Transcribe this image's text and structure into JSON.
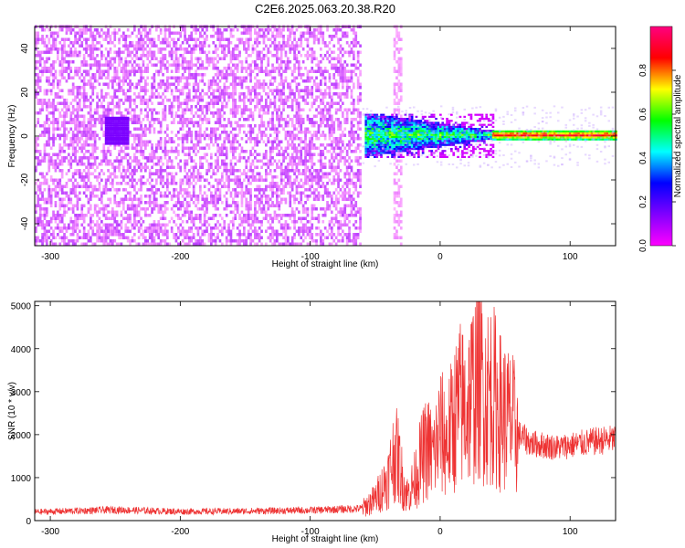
{
  "page": {
    "title": "C2E6.2025.063.20.38.R20"
  },
  "chart_data": [
    {
      "type": "heatmap",
      "title": "C2E6.2025.063.20.38.R20",
      "xlabel": "Height of straight line (km)",
      "ylabel": "Frequency (Hz)",
      "xlim": [
        -312,
        135
      ],
      "ylim": [
        -50,
        50
      ],
      "xticks": [
        -300,
        -200,
        -100,
        0,
        100
      ],
      "yticks": [
        -40,
        -20,
        0,
        20,
        40
      ],
      "colorbar": {
        "label": "Normalized spectral amplitude",
        "range": [
          0,
          1
        ],
        "ticks": [
          0.0,
          0.2,
          0.4,
          0.6,
          0.8
        ],
        "colormap": [
          "#ff00ff",
          "#8000ff",
          "#0000ff",
          "#00ffff",
          "#00ff00",
          "#ffff00",
          "#ff0000",
          "#ff0080"
        ]
      },
      "regions": [
        {
          "x_range": [
            -312,
            -62
          ],
          "f_range": [
            -50,
            50
          ],
          "amplitude": 0.05
        },
        {
          "x_range": [
            -258,
            -240
          ],
          "f_range": [
            -4,
            8
          ],
          "amplitude": 0.15
        },
        {
          "x_range": [
            -36,
            -30
          ],
          "f_range": [
            -50,
            50
          ],
          "amplitude": 0.02
        },
        {
          "x_range": [
            -58,
            40
          ],
          "f_range": [
            -10,
            10
          ],
          "amplitude": 0.4
        },
        {
          "x_range": [
            40,
            135
          ],
          "f_range": [
            -2,
            2
          ],
          "amplitude": 0.9
        }
      ],
      "grid": false
    },
    {
      "type": "line",
      "xlabel": "Height of straight line (km)",
      "ylabel": "SNR (10 * v/v)",
      "xlim": [
        -312,
        135
      ],
      "ylim": [
        0,
        5100
      ],
      "xticks": [
        -300,
        -200,
        -100,
        0,
        100
      ],
      "yticks": [
        0,
        1000,
        2000,
        3000,
        4000,
        5000
      ],
      "series": [
        {
          "color": "#ee3333",
          "x": [
            -312,
            -250,
            -200,
            -150,
            -100,
            -60,
            -50,
            -40,
            -35,
            -32,
            -28,
            -25,
            -20,
            -15,
            -10,
            -5,
            0,
            5,
            10,
            15,
            20,
            25,
            30,
            35,
            40,
            45,
            50,
            55,
            60,
            70,
            80,
            90,
            100,
            110,
            120,
            135
          ],
          "y": [
            200,
            250,
            210,
            220,
            240,
            280,
            500,
            1000,
            1600,
            1400,
            800,
            600,
            900,
            1400,
            1700,
            1500,
            2100,
            1800,
            2300,
            2700,
            2600,
            3000,
            3500,
            2900,
            3000,
            2600,
            2400,
            2300,
            2000,
            1800,
            1750,
            1700,
            1750,
            1800,
            1850,
            1900
          ]
        }
      ],
      "grid": false
    }
  ]
}
